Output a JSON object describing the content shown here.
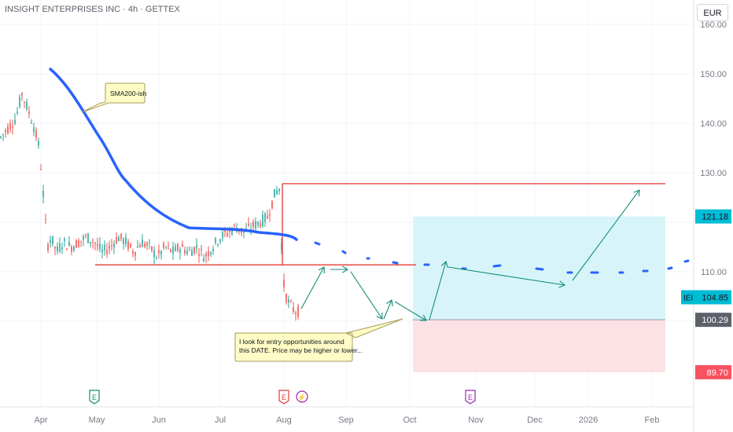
{
  "header": {
    "title": "INSIGHT ENTERPRISES INC · 4h · GETTEX",
    "currency": "EUR"
  },
  "chart_data": {
    "type": "candlestick",
    "ylim": [
      84.5,
      161.5
    ],
    "y_ticks": [
      100,
      110,
      120,
      130,
      140,
      150,
      160
    ],
    "y_tick_labels": [
      "",
      "110.00",
      "",
      "130.00",
      "140.00",
      "150.00",
      "160.00"
    ],
    "x_ticks": [
      "Apr",
      "May",
      "Jun",
      "Jul",
      "Aug",
      "Sep",
      "Oct",
      "Nov",
      "Dec",
      "2026",
      "Feb"
    ],
    "grid": true,
    "price_badges": [
      {
        "value": "121.18",
        "color": "#00bcd4",
        "text_color": "#131722"
      },
      {
        "value": "104.85",
        "color": "#00bcd4",
        "text_color": "#131722",
        "label": "IEI"
      },
      {
        "value": "100.29",
        "color": "#5d606b",
        "text_color": "#ffffff"
      },
      {
        "value": "89.70",
        "color": "#f7525f",
        "text_color": "#ffffff"
      }
    ],
    "horizontal_lines": [
      {
        "value": 127.8,
        "from": "Aug",
        "to": "Feb",
        "color": "#e53935"
      },
      {
        "value": 111.4,
        "from": "May",
        "to": "Oct",
        "color": "#e53935"
      }
    ],
    "position_box": {
      "from": "Oct",
      "to": "Feb",
      "entry": 100.29,
      "target": 121.18,
      "stop": 89.7
    },
    "annotations": [
      {
        "text": "SMA200-ish"
      },
      {
        "text_lines": [
          "I look for entry opportunities around",
          "this DATE. Price may be higher or lower..."
        ]
      }
    ],
    "event_markers": [
      "E",
      "E",
      "⚡",
      "E"
    ],
    "colors": {
      "up": "#26a69a",
      "down": "#ef5350",
      "sma": "#2962ff",
      "arrows": "#138d75",
      "target_fill": "#d7f5f8",
      "stop_fill": "#fde2e5"
    }
  }
}
